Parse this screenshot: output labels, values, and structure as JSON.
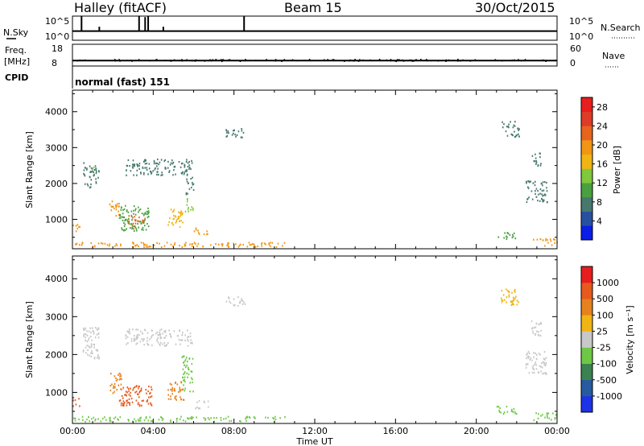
{
  "header": {
    "station": "Halley (fitACF)",
    "beam": "Beam 15",
    "date": "30/Oct/2015"
  },
  "chart_data": [
    {
      "type": "line",
      "panel": "nsky-nsearch",
      "left_label": "N.Sky",
      "right_label": "N.Search",
      "left_ticks": [
        "10^5",
        "10^0"
      ],
      "right_ticks": [
        "10^5",
        "10^0"
      ],
      "ylim_log10": [
        0,
        5
      ],
      "baseline_log10": 1.9,
      "spikes": [
        {
          "x_hour": 0.45,
          "log10": 5.0
        },
        {
          "x_hour": 1.33,
          "log10": 2.8
        },
        {
          "x_hour": 3.3,
          "log10": 5.0
        },
        {
          "x_hour": 3.6,
          "log10": 4.8
        },
        {
          "x_hour": 3.75,
          "log10": 5.0
        },
        {
          "x_hour": 4.5,
          "log10": 2.8
        },
        {
          "x_hour": 8.5,
          "log10": 5.0
        }
      ]
    },
    {
      "type": "scatter",
      "panel": "freq-nave",
      "left_label_top": "Freq.",
      "left_label_bottom": "[MHz]",
      "right_label": "Nave",
      "left_ticks": [
        "18",
        "8"
      ],
      "right_ticks": [
        "60",
        "0"
      ],
      "ylim": [
        8,
        18
      ],
      "frequency_mhz": 10.5,
      "nave_typical": 30
    },
    {
      "type": "table",
      "panel": "cpid",
      "label": "CPID",
      "text": "normal (fast) 151"
    },
    {
      "type": "heatmap",
      "panel": "power",
      "ylabel": "Slant Range [km]",
      "xlabel": "Time UT",
      "x_ticks": [
        "00:00",
        "04:00",
        "08:00",
        "12:00",
        "16:00",
        "20:00",
        "00:00"
      ],
      "y_ticks": [
        "1000",
        "2000",
        "3000",
        "4000"
      ],
      "xlim_hours": [
        0,
        24
      ],
      "ylim_km": [
        180,
        4600
      ],
      "colorbar": {
        "label": "Power [dB]",
        "ticks": [
          "4",
          "8",
          "12",
          "16",
          "20",
          "24",
          "28"
        ],
        "range": [
          0,
          30
        ],
        "colors": [
          "#0a1ee6",
          "#2850a0",
          "#46786e",
          "#4aa040",
          "#80c83c",
          "#f0b414",
          "#f09614",
          "#e6641e",
          "#dc3c28",
          "#e61e1e"
        ]
      },
      "echo_regions": [
        {
          "t0": 0.85,
          "t1": 1.05,
          "r0": 2400,
          "r1": 2750,
          "v": 14
        },
        {
          "t0": 0.5,
          "t1": 1.3,
          "r0": 1900,
          "r1": 2600,
          "v": 7
        },
        {
          "t0": 2.6,
          "t1": 5.9,
          "r0": 2250,
          "r1": 2700,
          "v": 6
        },
        {
          "t0": 5.6,
          "t1": 6.0,
          "r0": 1700,
          "r1": 2200,
          "v": 6
        },
        {
          "t0": 1.8,
          "t1": 2.3,
          "r0": 1100,
          "r1": 1550,
          "v": 18
        },
        {
          "t0": 2.7,
          "t1": 3.6,
          "r0": 750,
          "r1": 1150,
          "v": 22
        },
        {
          "t0": 2.3,
          "t1": 3.8,
          "r0": 700,
          "r1": 1400,
          "v": 9
        },
        {
          "t0": 4.7,
          "t1": 5.5,
          "r0": 800,
          "r1": 1300,
          "v": 16
        },
        {
          "t0": 5.5,
          "t1": 6.0,
          "r0": 1200,
          "r1": 1600,
          "v": 12
        },
        {
          "t0": 6.0,
          "t1": 6.7,
          "r0": 600,
          "r1": 800,
          "v": 19
        },
        {
          "t0": 0.0,
          "t1": 0.35,
          "r0": 650,
          "r1": 900,
          "v": 18
        },
        {
          "t0": 0.0,
          "t1": 10.5,
          "r0": 250,
          "r1": 380,
          "v": 18
        },
        {
          "t0": 7.5,
          "t1": 8.6,
          "r0": 3300,
          "r1": 3550,
          "v": 7
        },
        {
          "t0": 21.2,
          "t1": 22.1,
          "r0": 3300,
          "r1": 3750,
          "v": 7
        },
        {
          "t0": 22.4,
          "t1": 23.5,
          "r0": 1500,
          "r1": 2100,
          "v": 6
        },
        {
          "t0": 21.0,
          "t1": 22.0,
          "r0": 450,
          "r1": 650,
          "v": 10
        },
        {
          "t0": 22.8,
          "t1": 24.0,
          "r0": 280,
          "r1": 480,
          "v": 18
        },
        {
          "t0": 22.7,
          "t1": 23.2,
          "r0": 2500,
          "r1": 2900,
          "v": 8
        }
      ]
    },
    {
      "type": "heatmap",
      "panel": "velocity",
      "ylabel": "Slant Range [km]",
      "xlabel": "Time UT",
      "x_ticks": [
        "00:00",
        "04:00",
        "08:00",
        "12:00",
        "16:00",
        "20:00",
        "00:00"
      ],
      "y_ticks": [
        "1000",
        "2000",
        "3000",
        "4000"
      ],
      "xlim_hours": [
        0,
        24
      ],
      "ylim_km": [
        180,
        4600
      ],
      "colorbar": {
        "label": "Velocity [m s⁻¹]",
        "ticks": [
          "1000",
          "500",
          "100",
          "25",
          "-25",
          "-100",
          "-500",
          "-1000"
        ],
        "colors": [
          "#1e32e6",
          "#285aa0",
          "#3c8250",
          "#6ec846",
          "#c8c8c8",
          "#f0b414",
          "#e6821e",
          "#e65a1e",
          "#e61e1e"
        ]
      },
      "echo_regions": [
        {
          "t0": 0.5,
          "t1": 1.3,
          "r0": 1900,
          "r1": 2750,
          "v": 4
        },
        {
          "t0": 2.6,
          "t1": 5.9,
          "r0": 2250,
          "r1": 2700,
          "v": 4
        },
        {
          "t0": 1.8,
          "t1": 2.4,
          "r0": 1000,
          "r1": 1550,
          "v": 6
        },
        {
          "t0": 2.3,
          "t1": 3.9,
          "r0": 650,
          "r1": 1200,
          "v": 7
        },
        {
          "t0": 4.7,
          "t1": 5.5,
          "r0": 800,
          "r1": 1300,
          "v": 6
        },
        {
          "t0": 5.4,
          "t1": 6.0,
          "r0": 1000,
          "r1": 2000,
          "v": 3
        },
        {
          "t0": 6.0,
          "t1": 6.7,
          "r0": 600,
          "r1": 800,
          "v": 4
        },
        {
          "t0": 0.0,
          "t1": 0.35,
          "r0": 650,
          "r1": 900,
          "v": 7
        },
        {
          "t0": 0.0,
          "t1": 10.5,
          "r0": 250,
          "r1": 380,
          "v": 3
        },
        {
          "t0": 7.5,
          "t1": 8.6,
          "r0": 3300,
          "r1": 3550,
          "v": 4
        },
        {
          "t0": 21.2,
          "t1": 22.1,
          "r0": 3300,
          "r1": 3750,
          "v": 5
        },
        {
          "t0": 22.4,
          "t1": 23.5,
          "r0": 1500,
          "r1": 2100,
          "v": 4
        },
        {
          "t0": 21.0,
          "t1": 22.0,
          "r0": 450,
          "r1": 650,
          "v": 3
        },
        {
          "t0": 22.8,
          "t1": 24.0,
          "r0": 280,
          "r1": 480,
          "v": 3
        },
        {
          "t0": 22.7,
          "t1": 23.2,
          "r0": 2500,
          "r1": 2900,
          "v": 4
        }
      ]
    }
  ]
}
